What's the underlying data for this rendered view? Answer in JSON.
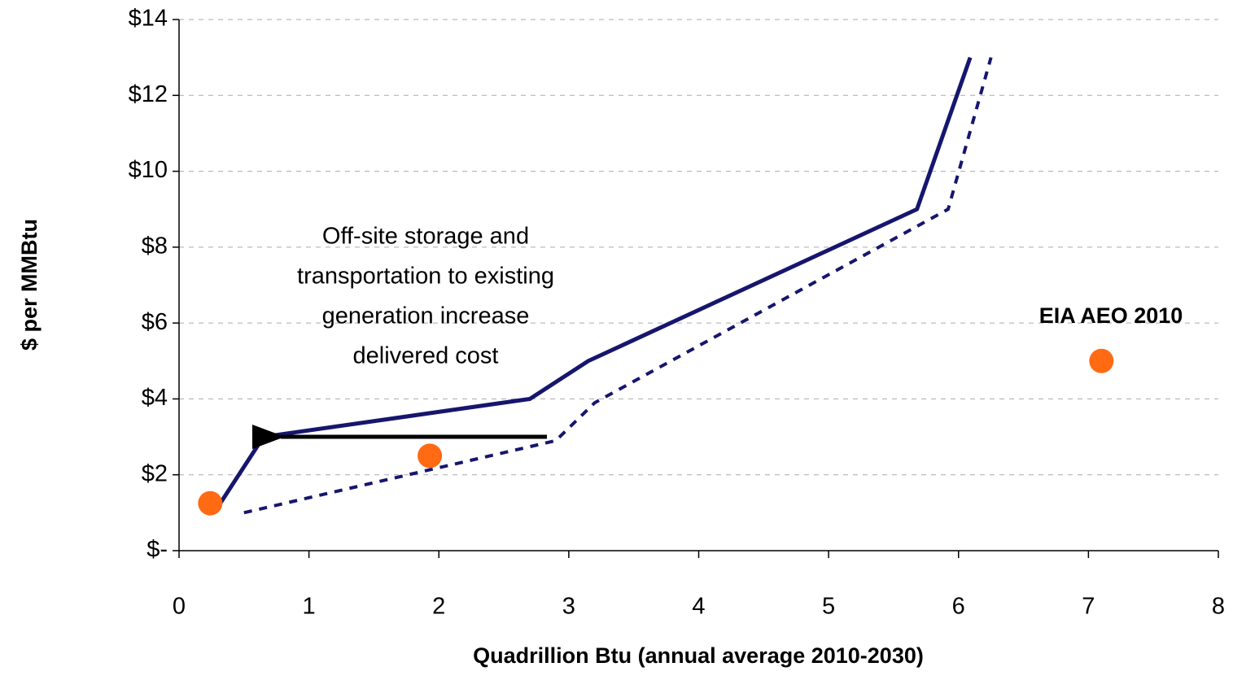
{
  "chart_data": {
    "type": "line",
    "xlabel": "Quadrillion Btu (annual average 2010-2030)",
    "ylabel": "$ per MMBtu",
    "xlim": [
      0,
      8
    ],
    "ylim": [
      0,
      14
    ],
    "xticks": [
      0,
      1,
      2,
      3,
      4,
      5,
      6,
      7,
      8
    ],
    "yticks": [
      {
        "value": 0,
        "label": "$-"
      },
      {
        "value": 2,
        "label": "$2"
      },
      {
        "value": 4,
        "label": "$4"
      },
      {
        "value": 6,
        "label": "$6"
      },
      {
        "value": 8,
        "label": "$8"
      },
      {
        "value": 10,
        "label": "$10"
      },
      {
        "value": 12,
        "label": "$12"
      },
      {
        "value": 14,
        "label": "$14"
      }
    ],
    "grid": true,
    "series": [
      {
        "color": "#16166e",
        "style": "solid",
        "x": [
          0.27,
          0.65,
          2.7,
          3.15,
          5.68,
          6.09
        ],
        "values": [
          1.0,
          3.0,
          4.0,
          5.0,
          9.0,
          13.0
        ]
      },
      {
        "color": "#16166e",
        "style": "dashed",
        "x": [
          0.5,
          2.9,
          3.2,
          5.92,
          6.25
        ],
        "values": [
          1.0,
          2.9,
          3.9,
          9.0,
          13.0
        ]
      }
    ],
    "points": {
      "color": "#ff6a13",
      "x": [
        0.24,
        1.93,
        7.1
      ],
      "values": [
        1.25,
        2.5,
        5.0
      ]
    },
    "annotation_lines": [
      "Off-site storage and",
      "transportation to existing",
      "generation increase",
      "delivered cost"
    ],
    "point_label": "EIA AEO 2010"
  }
}
